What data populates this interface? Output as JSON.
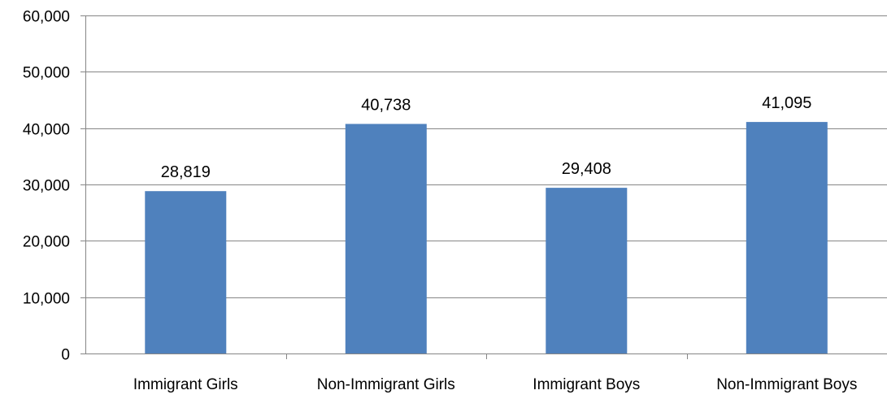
{
  "chart_data": {
    "type": "bar",
    "categories": [
      "Immigrant Girls",
      "Non-Immigrant Girls",
      "Immigrant Boys",
      "Non-Immigrant Boys"
    ],
    "values": [
      28819,
      40738,
      29408,
      41095
    ],
    "value_labels": [
      "28,819",
      "40,738",
      "29,408",
      "41,095"
    ],
    "title": "",
    "xlabel": "",
    "ylabel": "",
    "ylim": [
      0,
      60000
    ],
    "yticks": [
      0,
      10000,
      20000,
      30000,
      40000,
      50000,
      60000
    ],
    "ytick_labels": [
      "0",
      "10,000",
      "20,000",
      "30,000",
      "40,000",
      "50,000",
      "60,000"
    ],
    "grid": true,
    "legend": "none",
    "bar_color": "#4F81BD",
    "grid_color": "#868686"
  }
}
